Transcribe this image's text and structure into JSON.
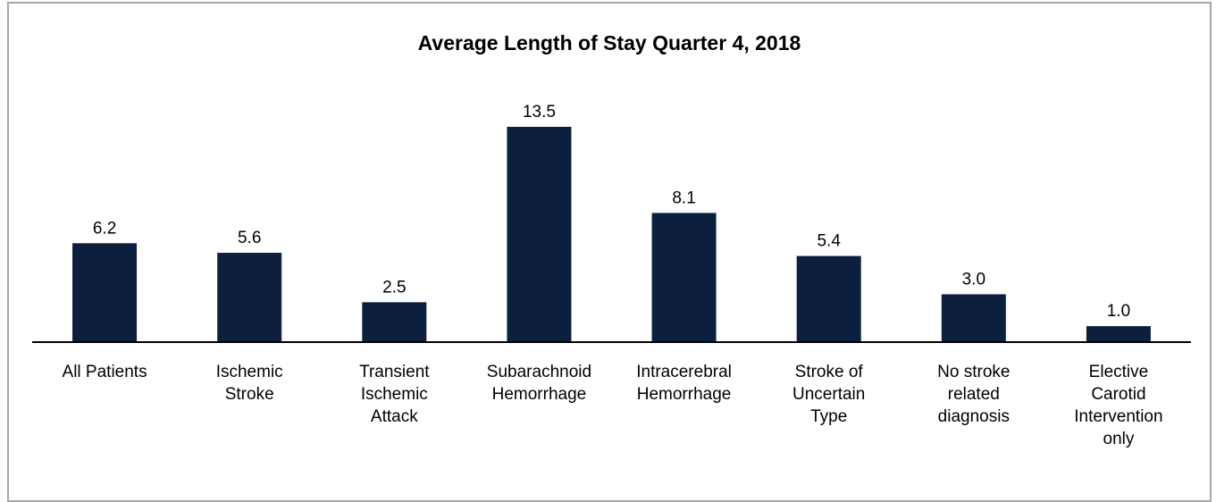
{
  "chart_data": {
    "type": "bar",
    "title": "Average Length of Stay Quarter 4, 2018",
    "categories": [
      "All Patients",
      "Ischemic Stroke",
      "Transient Ischemic Attack",
      "Subarachnoid Hemorrhage",
      "Intracerebral Hemorrhage",
      "Stroke of Uncertain Type",
      "No stroke related diagnosis",
      "Elective Carotid Intervention only"
    ],
    "values": [
      6.2,
      5.6,
      2.5,
      13.5,
      8.1,
      5.4,
      3,
      1
    ],
    "value_labels": [
      "6.2",
      "5.6",
      "2.5",
      "13.5",
      "8.1",
      "5.4",
      "3.0",
      "1.0"
    ],
    "color": "#0c1f3f"
  }
}
